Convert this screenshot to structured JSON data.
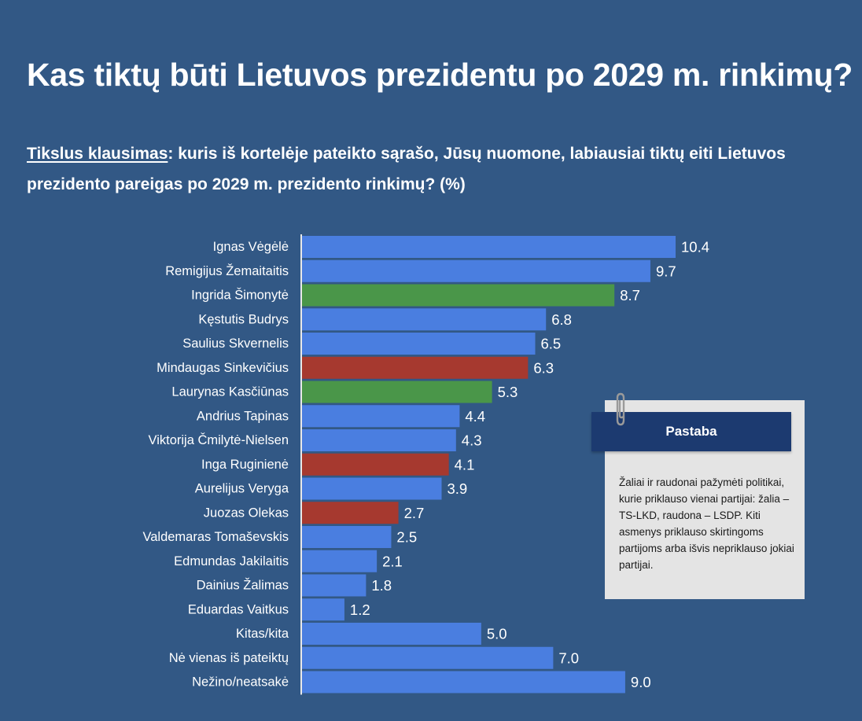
{
  "title": "Kas tiktų būti Lietuvos prezidentu po 2029 m. rinkimų?",
  "subtitle": {
    "lead": "Tikslus klausimas",
    "text": ": kuris iš kortelėje pateikto sąrašo, Jūsų nuomone, labiausiai tiktų eiti Lietuvos prezidento pareigas po 2029 m. prezidento rinkimų? (%)"
  },
  "note": {
    "header": "Pastaba",
    "text": "Žaliai ir raudonai pažymėti politikai, kurie priklauso vienai partijai: žalia – TS-LKD, raudona – LSDP. Kiti asmenys priklauso skirtingoms partijoms arba išvis nepriklauso jokiai partijai."
  },
  "colors": {
    "background": "#325885",
    "blue": "#4a7ee0",
    "green": "#4a9649",
    "red": "#a6392f"
  },
  "chart_data": {
    "type": "bar",
    "orientation": "horizontal",
    "title": "Kas tiktų būti Lietuvos prezidentu po 2029 m. rinkimų?",
    "unit": "%",
    "xlim": [
      0,
      10.4
    ],
    "categories": [
      "Ignas Vėgėlė",
      "Remigijus Žemaitaitis",
      "Ingrida Šimonytė",
      "Kęstutis Budrys",
      "Saulius Skvernelis",
      "Mindaugas Sinkevičius",
      "Laurynas Kasčiūnas",
      "Andrius Tapinas",
      "Viktorija Čmilytė-Nielsen",
      "Inga Ruginienė",
      "Aurelijus Veryga",
      "Juozas Olekas",
      "Valdemaras Tomaševskis",
      "Edmundas Jakilaitis",
      "Dainius Žalimas",
      "Eduardas Vaitkus",
      "Kitas/kita",
      "Nė vienas iš pateiktų",
      "Nežino/neatsakė"
    ],
    "values": [
      10.4,
      9.7,
      8.7,
      6.8,
      6.5,
      6.3,
      5.3,
      4.4,
      4.3,
      4.1,
      3.9,
      2.7,
      2.5,
      2.1,
      1.8,
      1.2,
      5.0,
      7.0,
      9.0
    ],
    "value_labels": [
      "10.4",
      "9.7",
      "8.7",
      "6.8",
      "6.5",
      "6.3",
      "5.3",
      "4.4",
      "4.3",
      "4.1",
      "3.9",
      "2.7",
      "2.5",
      "2.1",
      "1.8",
      "1.2",
      "5.0",
      "7.0",
      "9.0"
    ],
    "bar_colors": [
      "blue",
      "blue",
      "green",
      "blue",
      "blue",
      "red",
      "green",
      "blue",
      "blue",
      "red",
      "blue",
      "red",
      "blue",
      "blue",
      "blue",
      "blue",
      "blue",
      "blue",
      "blue"
    ]
  }
}
